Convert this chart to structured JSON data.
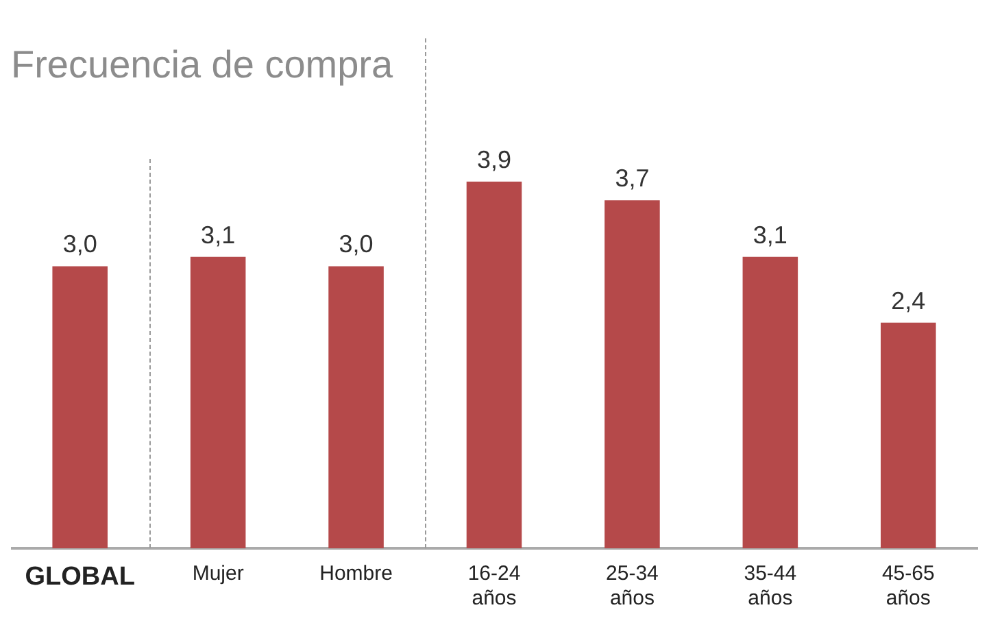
{
  "chart_data": {
    "type": "bar",
    "title": "Frecuencia de compra",
    "categories": [
      "GLOBAL",
      "Mujer",
      "Hombre",
      "16-24 años",
      "25-34 años",
      "35-44 años",
      "45-65 años"
    ],
    "values": [
      3.0,
      3.1,
      3.0,
      3.9,
      3.7,
      3.1,
      2.4
    ],
    "value_labels": [
      "3,0",
      "3,1",
      "3,0",
      "3,9",
      "3,7",
      "3,1",
      "2,4"
    ],
    "color": "#b5494a",
    "grid": false,
    "legend": false
  }
}
